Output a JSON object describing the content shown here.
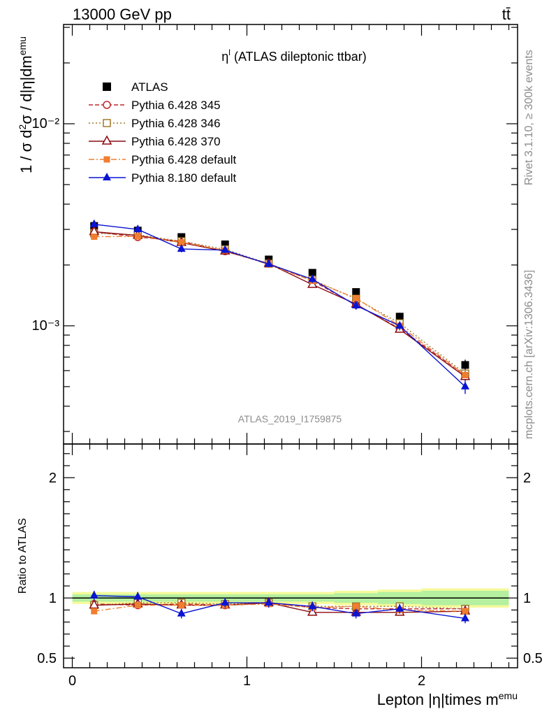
{
  "header": {
    "energy_label": "13000 GeV pp",
    "process_label": "tt̄"
  },
  "side": {
    "rivet_label": "Rivet 3.1.10, ≥ 300k events",
    "mcplots_label": "mcplots.cern.ch [arXiv:1306.3436]"
  },
  "watermark": "ATLAS_2019_I1759875",
  "colors": {
    "atlas": "#000000",
    "p345": "#c0282d",
    "p346": "#a07a2c",
    "p370": "#8b0b12",
    "p6def": "#f07e30",
    "p8def": "#0a14d2",
    "band_inner": "#b4f0a0",
    "band_outer": "#f5fa9b"
  },
  "chart_data": [
    {
      "type": "line",
      "title_main": "η",
      "title_sup": "l",
      "title_rest": " (ATLAS dileptonic ttbar)",
      "ylabel": "1 / σ d²σ / d|η|dm^emu",
      "yscale": "log",
      "ylim": [
        0.00026,
        0.031
      ],
      "xlim": [
        -0.05,
        2.55
      ],
      "y_ticks": [
        "10⁻³",
        "10⁻²"
      ],
      "legend_position": "top-left",
      "x": [
        0.125,
        0.375,
        0.625,
        0.875,
        1.125,
        1.375,
        1.625,
        1.875,
        2.25
      ],
      "series": [
        {
          "name": "ATLAS",
          "key": "atlas",
          "marker": "square",
          "values": [
            0.00312,
            0.00296,
            0.00275,
            0.00253,
            0.00213,
            0.00183,
            0.00147,
            0.00111,
            0.00064
          ],
          "err": [
            0.00012,
            0.0001,
            0.0001,
            9e-05,
            8e-05,
            7e-05,
            6e-05,
            5e-05,
            4e-05
          ]
        },
        {
          "name": "Pythia 6.428 345",
          "key": "p345",
          "marker": "circle-open",
          "dash": "6,3",
          "values": [
            0.00292,
            0.00275,
            0.00262,
            0.00234,
            0.00203,
            0.00167,
            0.00127,
            0.00097,
            0.00057
          ]
        },
        {
          "name": "Pythia 6.428 346",
          "key": "p346",
          "marker": "square-open",
          "dash": "2,3",
          "values": [
            0.00287,
            0.00282,
            0.00262,
            0.00239,
            0.00203,
            0.00169,
            0.00136,
            0.00103,
            0.00058
          ]
        },
        {
          "name": "Pythia 6.428 370",
          "key": "p370",
          "marker": "triangle-open",
          "dash": "",
          "values": [
            0.00292,
            0.0028,
            0.00258,
            0.00234,
            0.00203,
            0.0016,
            0.00128,
            0.00096,
            0.00056
          ]
        },
        {
          "name": "Pythia 6.428 default",
          "key": "p6def",
          "marker": "square",
          "dash": "8,3,2,3",
          "values": [
            0.00276,
            0.00277,
            0.00259,
            0.00236,
            0.00201,
            0.00167,
            0.00137,
            0.001,
            0.00057
          ]
        },
        {
          "name": "Pythia 8.180 default",
          "key": "p8def",
          "marker": "triangle",
          "dash": "",
          "values": [
            0.00318,
            0.003,
            0.0024,
            0.00237,
            0.00202,
            0.0017,
            0.00126,
            0.001,
            0.0005
          ],
          "err": [
            0.0001,
            9e-05,
            9e-05,
            8e-05,
            7e-05,
            7e-05,
            6e-05,
            5e-05,
            4e-05
          ]
        }
      ]
    },
    {
      "type": "line",
      "ylabel": "Ratio to ATLAS",
      "xlabel": "Lepton |η|times m^emu",
      "ylim": [
        0.42,
        2.28
      ],
      "xlim": [
        -0.05,
        2.55
      ],
      "y_ticks": [
        0.5,
        1,
        2
      ],
      "x_ticks": [
        0,
        1,
        2
      ],
      "reference": 1,
      "band_inner": [
        0.03,
        0.03,
        0.03,
        0.03,
        0.03,
        0.03,
        0.04,
        0.05,
        0.06
      ],
      "band_outer": [
        0.05,
        0.05,
        0.05,
        0.05,
        0.05,
        0.05,
        0.06,
        0.07,
        0.08
      ],
      "x": [
        0.125,
        0.375,
        0.625,
        0.875,
        1.125,
        1.375,
        1.625,
        1.875,
        2.25
      ],
      "series": [
        {
          "name": "Pythia 6.428 345",
          "key": "p345",
          "marker": "circle-open",
          "dash": "6,3",
          "values": [
            0.95,
            0.94,
            0.95,
            0.94,
            0.96,
            0.92,
            0.91,
            0.91,
            0.91
          ]
        },
        {
          "name": "Pythia 6.428 346",
          "key": "p346",
          "marker": "square-open",
          "dash": "2,3",
          "values": [
            0.94,
            0.96,
            0.96,
            0.95,
            0.96,
            0.93,
            0.93,
            0.93,
            0.91
          ]
        },
        {
          "name": "Pythia 6.428 370",
          "key": "p370",
          "marker": "triangle-open",
          "dash": "",
          "values": [
            0.94,
            0.95,
            0.94,
            0.94,
            0.96,
            0.88,
            0.88,
            0.88,
            0.89
          ]
        },
        {
          "name": "Pythia 6.428 default",
          "key": "p6def",
          "marker": "square",
          "dash": "8,3,2,3",
          "values": [
            0.89,
            0.94,
            0.94,
            0.94,
            0.95,
            0.92,
            0.93,
            0.9,
            0.89
          ]
        },
        {
          "name": "Pythia 8.180 default",
          "key": "p8def",
          "marker": "triangle",
          "dash": "",
          "values": [
            1.02,
            1.01,
            0.87,
            0.96,
            0.96,
            0.93,
            0.87,
            0.91,
            0.83
          ],
          "err": [
            0.04,
            0.04,
            0.04,
            0.04,
            0.04,
            0.04,
            0.04,
            0.04,
            0.04
          ]
        }
      ]
    }
  ]
}
